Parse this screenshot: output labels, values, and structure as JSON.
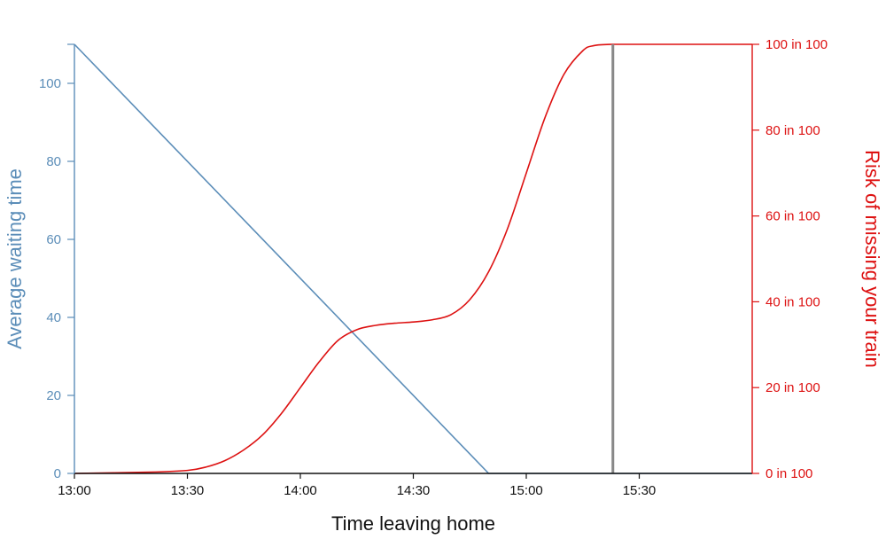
{
  "colors": {
    "wait": "#5b8db8",
    "risk": "#dd1111",
    "axis": "#111111",
    "marker": "#888888"
  },
  "chart_data": {
    "type": "line",
    "xlabel": "Time leaving home",
    "ylabel_left": "Average waiting time",
    "ylabel_right": "Risk of missing your train",
    "x_tick_labels": [
      "13:00",
      "13:30",
      "14:00",
      "14:30",
      "15:00",
      "15:30"
    ],
    "x_tick_minutes": [
      0,
      30,
      60,
      90,
      120,
      150
    ],
    "xlim_minutes_after_13_00": [
      0,
      180
    ],
    "y_left_ticks": [
      "0",
      "20",
      "40",
      "60",
      "80",
      "100"
    ],
    "y_left_tick_values": [
      0,
      20,
      40,
      60,
      80,
      100
    ],
    "ylim_left": [
      0,
      110
    ],
    "y_right_ticks": [
      "0 in 100",
      "20 in 100",
      "40 in 100",
      "60 in 100",
      "80 in 100",
      "100 in 100"
    ],
    "y_right_tick_values": [
      0,
      20,
      40,
      60,
      80,
      100
    ],
    "ylim_right": [
      0,
      100
    ],
    "series": [
      {
        "axis": "left",
        "x_minutes": [
          0,
          110,
          180
        ],
        "values": [
          110,
          0,
          0
        ]
      },
      {
        "axis": "right",
        "x_minutes": [
          0,
          20,
          30,
          35,
          40,
          45,
          50,
          55,
          60,
          65,
          70,
          75,
          80,
          85,
          90,
          95,
          100,
          105,
          110,
          115,
          120,
          125,
          130,
          135,
          138,
          143,
          150,
          180
        ],
        "values": [
          0,
          0.3,
          0.7,
          1.5,
          3,
          5.5,
          9,
          14,
          20,
          26,
          31,
          33.5,
          34.5,
          35,
          35.3,
          35.8,
          37,
          40.5,
          47,
          57,
          70,
          83,
          93,
          98.5,
          99.7,
          100,
          100,
          100
        ]
      }
    ],
    "marker_x_minutes": 143
  }
}
